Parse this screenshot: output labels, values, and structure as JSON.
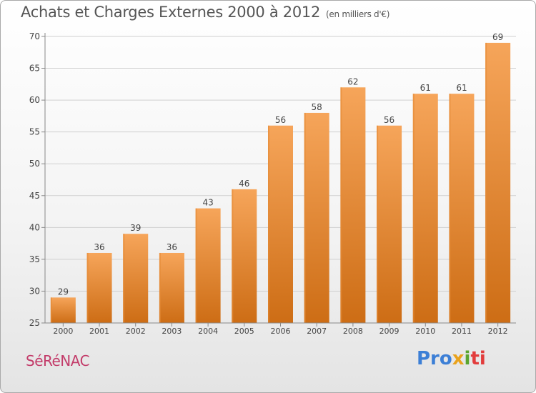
{
  "header": {
    "title": "Achats et Charges Externes 2000 à 2012",
    "subtitle": "(en milliers d'€)"
  },
  "footer": {
    "place": "SéRéNAC",
    "logo": [
      "Pro",
      "x",
      "i",
      "ti"
    ]
  },
  "colors": {
    "bar_top": "#f6a55a",
    "bar_bottom": "#cd6d15",
    "axis": "#888888",
    "grid": "#d0d0d0",
    "text": "#444444"
  },
  "chart_data": {
    "type": "bar",
    "categories": [
      "2000",
      "2001",
      "2002",
      "2003",
      "2004",
      "2005",
      "2006",
      "2007",
      "2008",
      "2009",
      "2010",
      "2011",
      "2012"
    ],
    "values": [
      29,
      36,
      39,
      36,
      43,
      46,
      56,
      58,
      62,
      56,
      61,
      61,
      69
    ],
    "title": "Achats et Charges Externes 2000 à 2012",
    "ylim": [
      25,
      70
    ],
    "yticks": [
      25,
      30,
      35,
      40,
      45,
      50,
      55,
      60,
      65,
      70
    ],
    "grid": true
  }
}
